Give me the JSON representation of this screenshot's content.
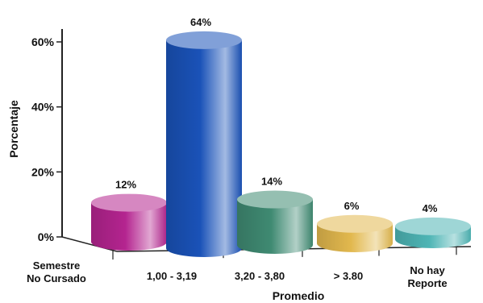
{
  "chart_data": {
    "type": "bar",
    "title": "",
    "xlabel": "Promedio",
    "ylabel": "Porcentaje",
    "ylim": [
      0,
      70
    ],
    "yticks": [
      0,
      20,
      40,
      60
    ],
    "ytick_labels": [
      "0%",
      "20%",
      "40%",
      "60%"
    ],
    "categories": [
      [
        "Semestre",
        "No Cursado"
      ],
      [
        "1,00 - 3,19"
      ],
      [
        "3,20 - 3,80"
      ],
      [
        "> 3.80"
      ],
      [
        "No hay",
        "Reporte"
      ]
    ],
    "values": [
      12,
      64,
      14,
      6,
      4
    ],
    "value_labels": [
      "12%",
      "64%",
      "14%",
      "6%",
      "4%"
    ],
    "bar_colors": [
      "#b4248f",
      "#1a52b8",
      "#3f8a72",
      "#e2b84e",
      "#4eb5b5"
    ],
    "grid": false,
    "legend": "none",
    "style": "3d-cylinder"
  }
}
